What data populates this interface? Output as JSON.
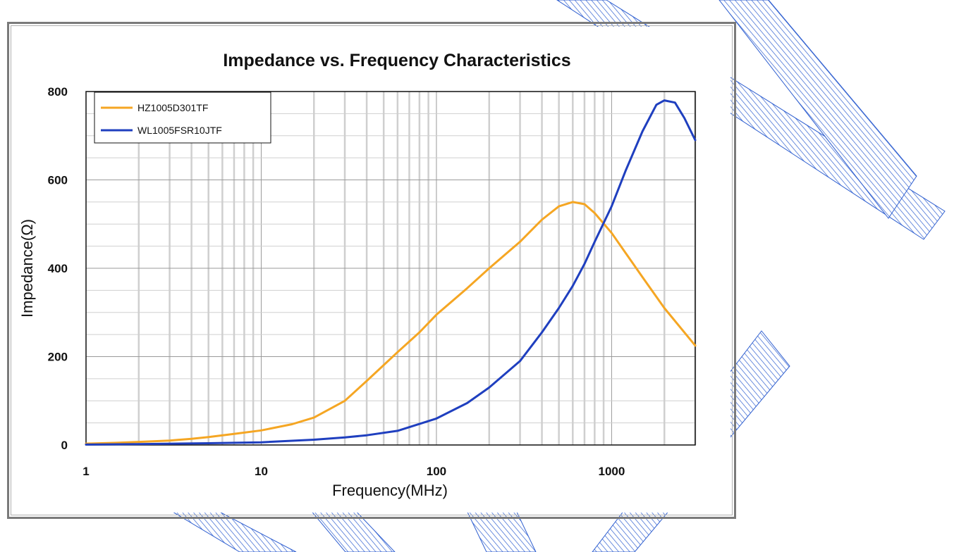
{
  "chart_data": {
    "type": "line",
    "title": "Impedance vs. Frequency Characteristics",
    "xlabel": "Frequency(MHz)",
    "ylabel": "Impedance(Ω)",
    "x_scale": "log",
    "xlim": [
      1,
      3000
    ],
    "ylim": [
      0,
      800
    ],
    "x_ticks": [
      1,
      10,
      100,
      1000
    ],
    "x_tick_labels": [
      "1",
      "10",
      "100",
      "1000"
    ],
    "y_ticks": [
      0,
      200,
      400,
      600,
      800
    ],
    "y_tick_labels": [
      "0",
      "200",
      "400",
      "600",
      "800"
    ],
    "grid": true,
    "legend_position": "top-left",
    "series": [
      {
        "name": "HZ1005D301TF",
        "color": "#f5a623",
        "points": [
          [
            1,
            3
          ],
          [
            1.5,
            5
          ],
          [
            2,
            7
          ],
          [
            3,
            10
          ],
          [
            4,
            14
          ],
          [
            5,
            18
          ],
          [
            7,
            25
          ],
          [
            10,
            33
          ],
          [
            15,
            47
          ],
          [
            20,
            62
          ],
          [
            30,
            100
          ],
          [
            40,
            145
          ],
          [
            60,
            210
          ],
          [
            80,
            255
          ],
          [
            100,
            295
          ],
          [
            150,
            355
          ],
          [
            200,
            400
          ],
          [
            300,
            460
          ],
          [
            400,
            510
          ],
          [
            500,
            540
          ],
          [
            600,
            550
          ],
          [
            700,
            545
          ],
          [
            800,
            525
          ],
          [
            1000,
            480
          ],
          [
            1500,
            380
          ],
          [
            2000,
            310
          ],
          [
            3000,
            225
          ]
        ]
      },
      {
        "name": "WL1005FSR10JTF",
        "color": "#1f3fbf",
        "points": [
          [
            1,
            1
          ],
          [
            2,
            2
          ],
          [
            5,
            4
          ],
          [
            10,
            6
          ],
          [
            20,
            12
          ],
          [
            30,
            17
          ],
          [
            40,
            22
          ],
          [
            60,
            32
          ],
          [
            100,
            60
          ],
          [
            150,
            95
          ],
          [
            200,
            130
          ],
          [
            300,
            190
          ],
          [
            400,
            255
          ],
          [
            500,
            310
          ],
          [
            600,
            360
          ],
          [
            700,
            410
          ],
          [
            800,
            460
          ],
          [
            1000,
            540
          ],
          [
            1200,
            620
          ],
          [
            1500,
            710
          ],
          [
            1800,
            770
          ],
          [
            2000,
            780
          ],
          [
            2300,
            775
          ],
          [
            2600,
            740
          ],
          [
            3000,
            690
          ]
        ]
      }
    ]
  },
  "colors": {
    "watermark": "#2f5fd0",
    "grid_major": "#9a9a9a",
    "grid_minor": "#cfcfcf"
  }
}
